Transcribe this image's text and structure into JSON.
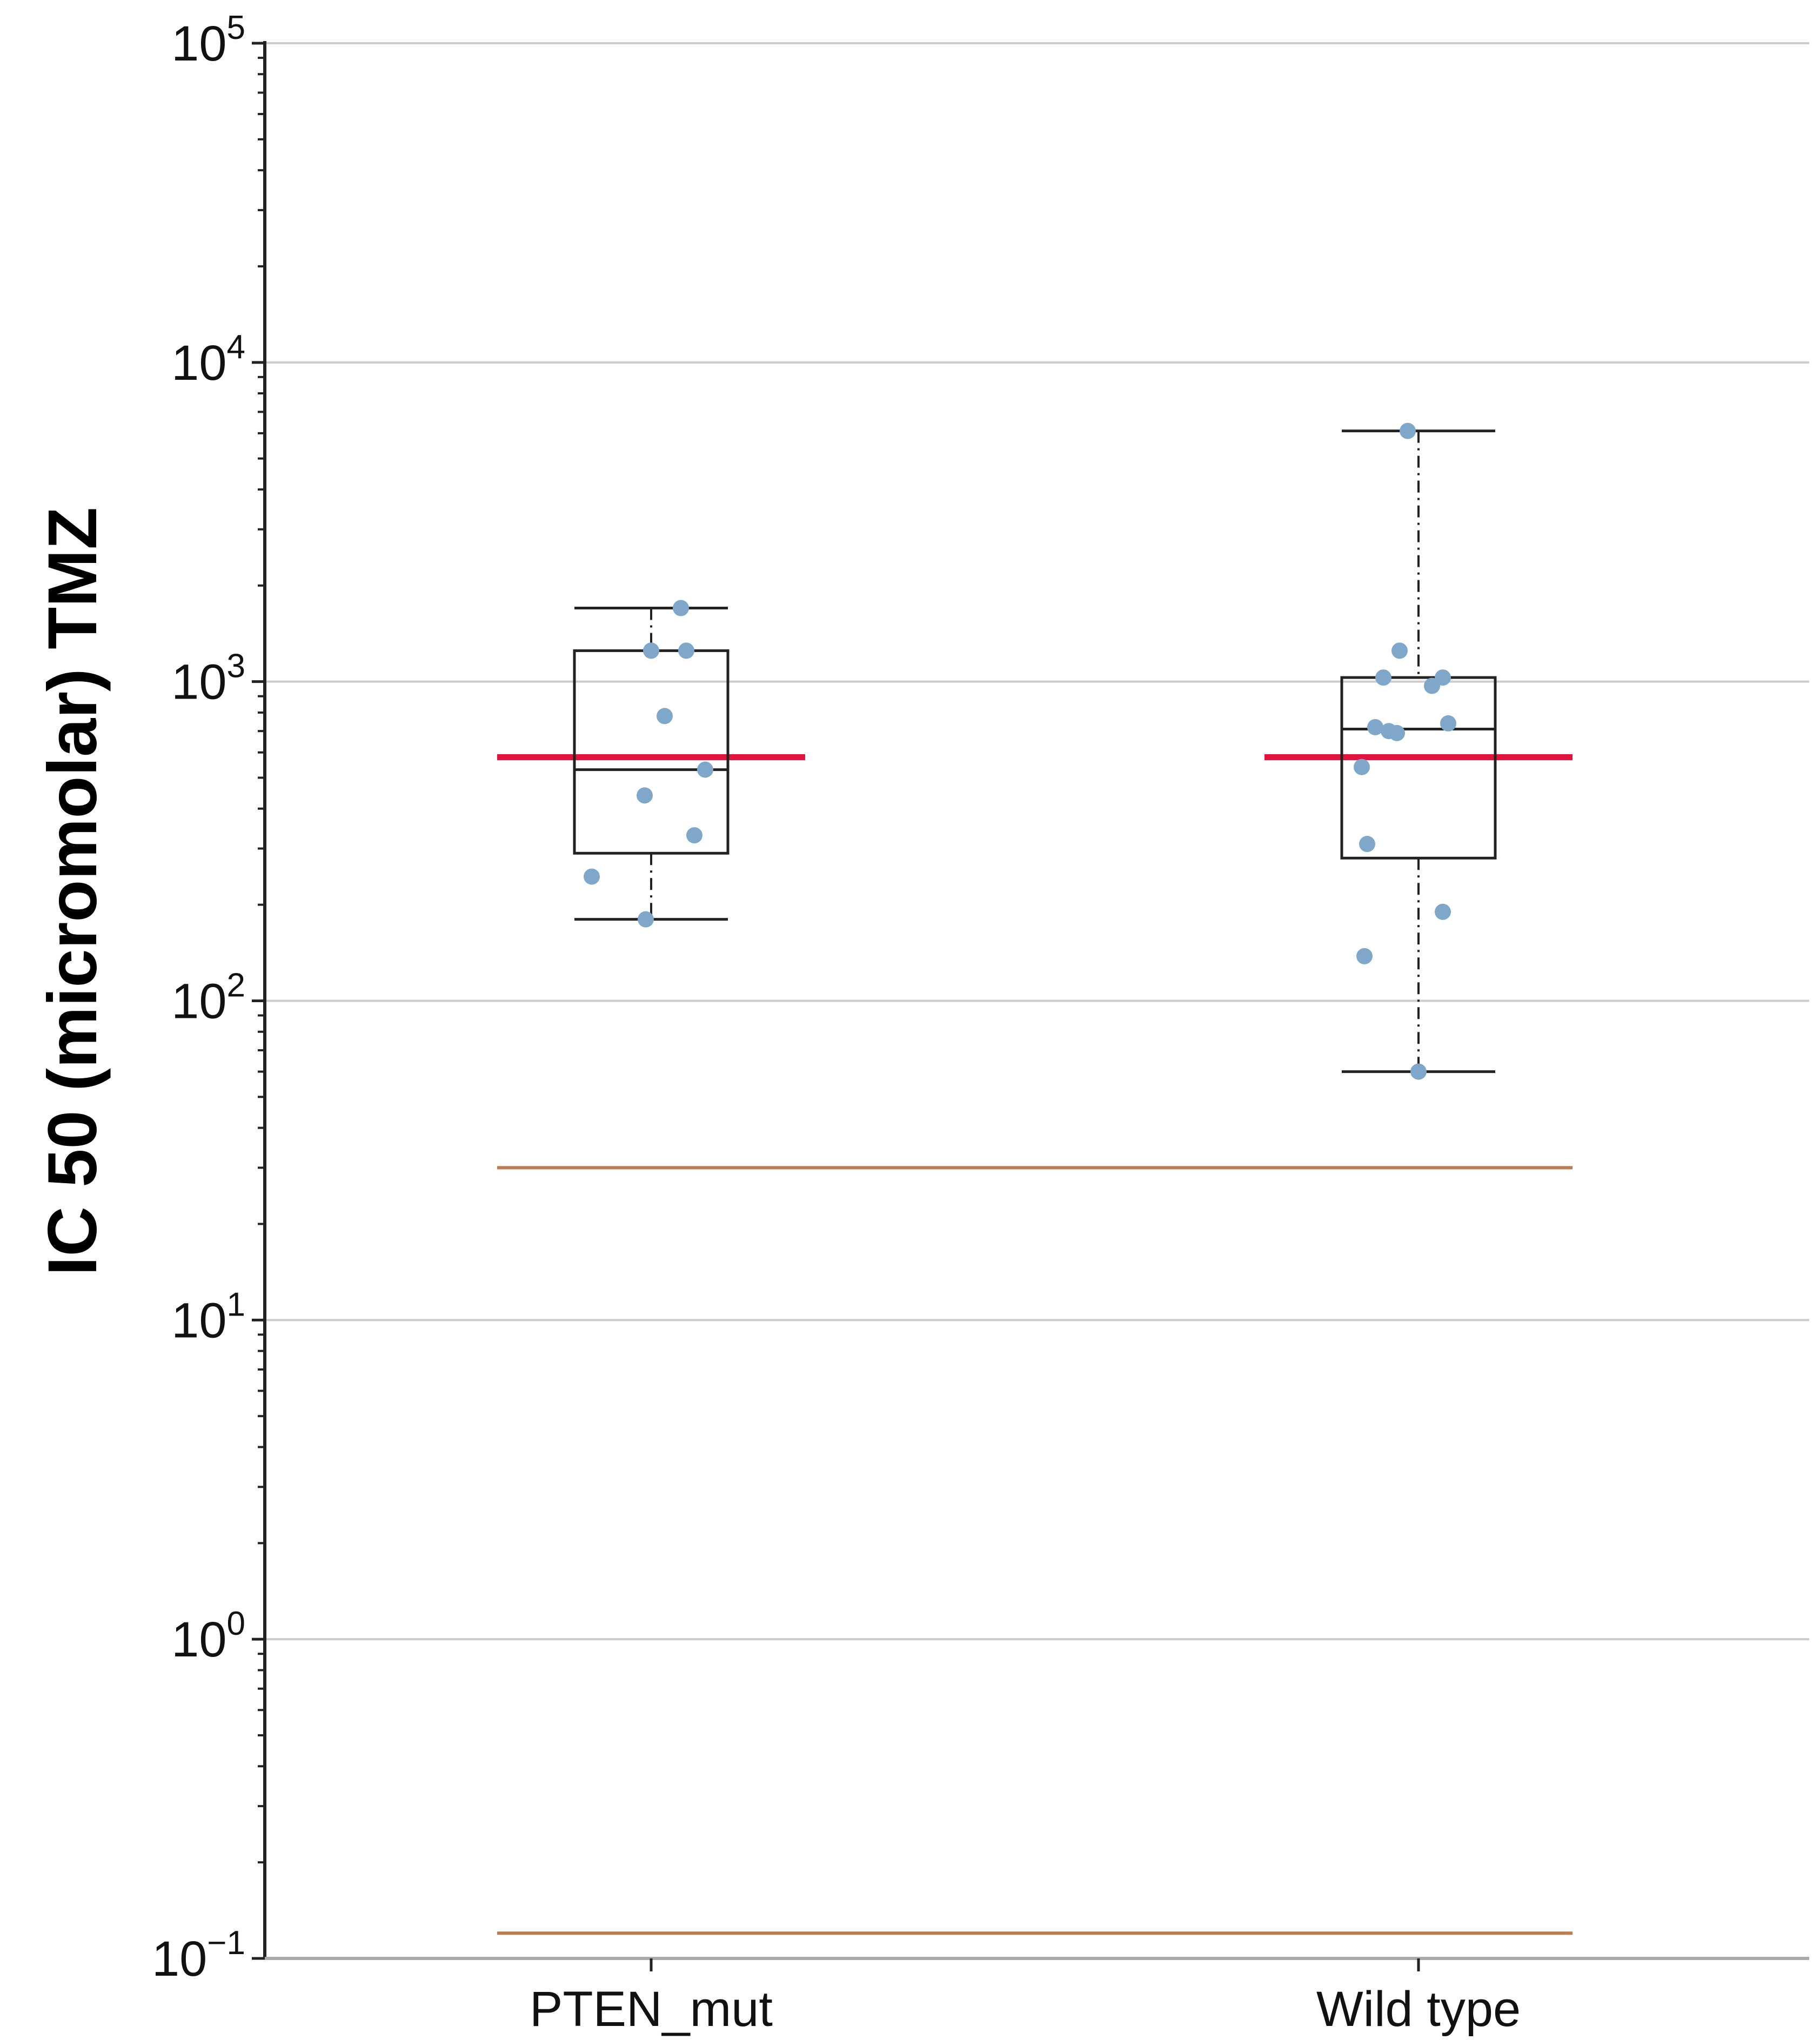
{
  "chart_data": {
    "type": "box",
    "title": "",
    "ylabel": "IC 50 (micromolar) TMZ",
    "xlabel": "",
    "yscale": "log",
    "ylim": [
      0.1,
      100000
    ],
    "yticks": [
      {
        "value": 100000,
        "base": "10",
        "exp": "5"
      },
      {
        "value": 10000,
        "base": "10",
        "exp": "4"
      },
      {
        "value": 1000,
        "base": "10",
        "exp": "3"
      },
      {
        "value": 100,
        "base": "10",
        "exp": "2"
      },
      {
        "value": 10,
        "base": "10",
        "exp": "1"
      },
      {
        "value": 1,
        "base": "10",
        "exp": "0"
      },
      {
        "value": 0.1,
        "base": "10",
        "exp": "−1"
      }
    ],
    "grid": true,
    "categories": [
      "PTEN_mut",
      "Wild type"
    ],
    "boxes": [
      {
        "name": "PTEN_mut",
        "whisker_low": 180,
        "q1": 290,
        "median": 530,
        "q3": 1250,
        "whisker_high": 1700,
        "points": [
          1700,
          1250,
          1250,
          780,
          530,
          440,
          330,
          245,
          180
        ]
      },
      {
        "name": "Wild type",
        "whisker_low": 60,
        "q1": 280,
        "median": 710,
        "q3": 1030,
        "whisker_high": 6100,
        "points": [
          6100,
          1250,
          1030,
          1030,
          970,
          740,
          720,
          700,
          690,
          540,
          310,
          190,
          138,
          60
        ]
      }
    ],
    "reference_lines": [
      {
        "value": 580,
        "color": "#e0143c",
        "label": "",
        "segments": "per-group"
      },
      {
        "value": 30,
        "color": "#c07a50",
        "label": ""
      },
      {
        "value": 0.12,
        "color": "#c07a50",
        "label": ""
      }
    ],
    "colors": {
      "points": "#7fa7c9",
      "box": "#222222",
      "grid": "#cccccc",
      "axis": "#222222"
    }
  }
}
